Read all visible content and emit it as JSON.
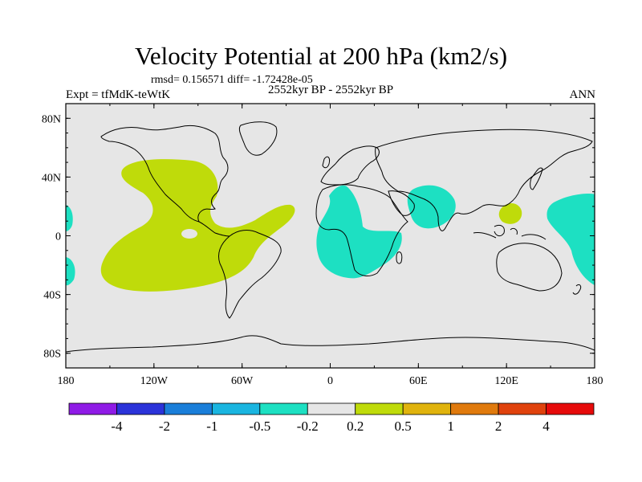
{
  "title": "Velocity Potential at 200 hPa (km2/s)",
  "stats": "rmsd= 0.156571 diff= -1.72428e-05",
  "experiment": "Expt = tfMdK-teWtK",
  "period": "2552kyr BP - 2552kyr BP",
  "season": "ANN",
  "lat_ticks": [
    {
      "value": 80,
      "label": "80N"
    },
    {
      "value": 40,
      "label": "40N"
    },
    {
      "value": 0,
      "label": "0"
    },
    {
      "value": -40,
      "label": "40S"
    },
    {
      "value": -80,
      "label": "80S"
    }
  ],
  "lon_ticks": [
    {
      "value": -180,
      "label": "180"
    },
    {
      "value": -120,
      "label": "120W"
    },
    {
      "value": -60,
      "label": "60W"
    },
    {
      "value": 0,
      "label": "0"
    },
    {
      "value": 60,
      "label": "60E"
    },
    {
      "value": 120,
      "label": "120E"
    },
    {
      "value": 180,
      "label": "180"
    }
  ],
  "colorbar": {
    "colors": [
      "#8f1be6",
      "#2b33d9",
      "#1a7ed9",
      "#1ab5e0",
      "#1de0c2",
      "#e6e6e6",
      "#bfdb0a",
      "#e0b30d",
      "#e07a0d",
      "#e0420d",
      "#e60a0a"
    ],
    "labels": [
      "-4",
      "-2",
      "-1",
      "-0.5",
      "-0.2",
      "0.2",
      "0.5",
      "1",
      "2",
      "4"
    ]
  },
  "colors": {
    "background": "#e6e6e6",
    "positive": "#bfdb0a",
    "negative": "#1de0c2"
  }
}
